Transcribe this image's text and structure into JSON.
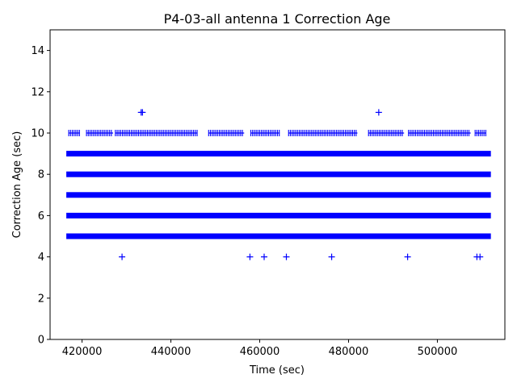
{
  "chart_data": {
    "type": "scatter",
    "title": "P4-03-all antenna 1 Correction Age",
    "xlabel": "Time (sec)",
    "ylabel": "Correction Age (sec)",
    "xlim": [
      412800,
      515200
    ],
    "ylim": [
      0,
      15
    ],
    "x_ticks": [
      420000,
      440000,
      460000,
      480000,
      500000
    ],
    "x_tick_labels": [
      "420000",
      "440000",
      "460000",
      "480000",
      "500000"
    ],
    "y_ticks": [
      0,
      2,
      4,
      6,
      8,
      10,
      12,
      14
    ],
    "y_tick_labels": [
      "0",
      "2",
      "4",
      "6",
      "8",
      "10",
      "12",
      "14"
    ],
    "grid": false,
    "marker": "+",
    "color": "#0000ff",
    "dense_bands": [
      {
        "y": 5,
        "x_start": 417000,
        "x_end": 511500
      },
      {
        "y": 6,
        "x_start": 417000,
        "x_end": 511500
      },
      {
        "y": 7,
        "x_start": 417000,
        "x_end": 511500
      },
      {
        "y": 8,
        "x_start": 417000,
        "x_end": 511500
      },
      {
        "y": 9,
        "x_start": 417000,
        "x_end": 511500
      }
    ],
    "sparse_band": {
      "y": 10,
      "segments": [
        [
          417000,
          419500
        ],
        [
          421000,
          427000
        ],
        [
          427500,
          446000
        ],
        [
          448500,
          456500
        ],
        [
          458000,
          464500
        ],
        [
          466500,
          482000
        ],
        [
          484500,
          492500
        ],
        [
          493500,
          507500
        ],
        [
          508500,
          511000
        ]
      ]
    },
    "outliers": [
      {
        "x": 429000,
        "y": 4
      },
      {
        "x": 457800,
        "y": 4
      },
      {
        "x": 461000,
        "y": 4
      },
      {
        "x": 466000,
        "y": 4
      },
      {
        "x": 476200,
        "y": 4
      },
      {
        "x": 493300,
        "y": 4
      },
      {
        "x": 508900,
        "y": 4
      },
      {
        "x": 509600,
        "y": 4
      },
      {
        "x": 433300,
        "y": 11
      },
      {
        "x": 433600,
        "y": 11
      },
      {
        "x": 486800,
        "y": 11
      }
    ]
  }
}
